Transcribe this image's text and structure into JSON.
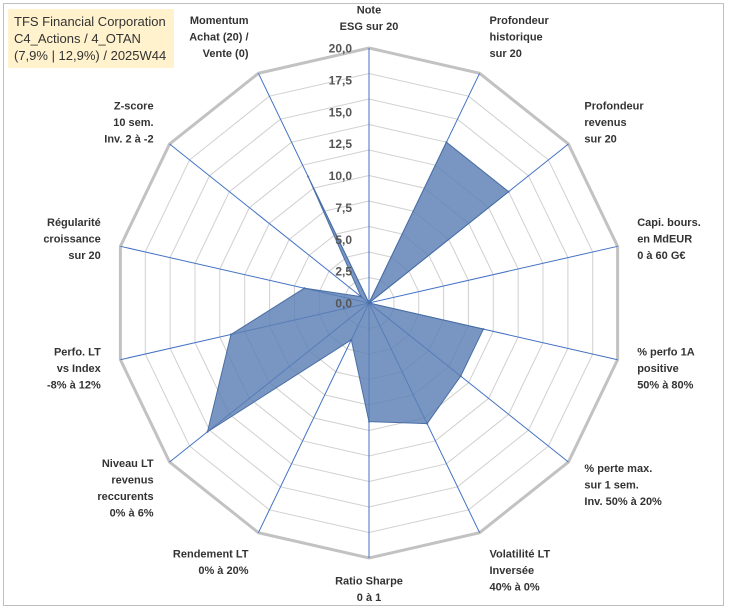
{
  "chart_data": {
    "type": "radar",
    "title_lines": [
      "TFS Financial Corporation",
      "C4_Actions / 4_OTAN",
      "(7,9% | 12,9%) / 2025W44"
    ],
    "range": [
      0,
      20
    ],
    "ticks": [
      "0,0",
      "2,5",
      "5,0",
      "7,5",
      "10,0",
      "12,5",
      "15,0",
      "17,5",
      "20,0"
    ],
    "axes": [
      {
        "label": [
          "Note",
          "ESG sur 20"
        ],
        "value": 0.0
      },
      {
        "label": [
          "Profondeur",
          "historique",
          "sur 20"
        ],
        "value": 14.0
      },
      {
        "label": [
          "Profondeur",
          "revenus",
          "sur 20"
        ],
        "value": 14.0
      },
      {
        "label": [
          "Capi. bours.",
          "en MdEUR",
          "0 à 60 G€"
        ],
        "value": 0.0
      },
      {
        "label": [
          "% perfo 1A",
          "positive",
          "50% à 80%"
        ],
        "value": 9.2
      },
      {
        "label": [
          "% perte max.",
          "sur 1 sem.",
          "Inv. 50% à 20%"
        ],
        "value": 9.2
      },
      {
        "label": [
          "Volatilité LT",
          "Inversée",
          "40% à 0%"
        ],
        "value": 10.5
      },
      {
        "label": [
          "Ratio Sharpe",
          "0 à 1"
        ],
        "value": 9.3
      },
      {
        "label": [
          "Rendement LT",
          "0% à 20%"
        ],
        "value": 3.2
      },
      {
        "label": [
          "Niveau LT",
          "revenus",
          "reccurents",
          "0% à 6%"
        ],
        "value": 16.2
      },
      {
        "label": [
          "Perfo. LT",
          "vs Index",
          "-8% à 12%"
        ],
        "value": 11.1
      },
      {
        "label": [
          "Régularité",
          "croissance",
          "sur 20"
        ],
        "value": 5.2
      },
      {
        "label": [
          "Z-score",
          "10 sem.",
          "Inv. 2 à -2"
        ],
        "value": 0.8
      },
      {
        "label": [
          "Momentum",
          "Achat (20) /",
          "Vente (0)"
        ],
        "value": 11.0
      }
    ],
    "colors": {
      "fill": "#5b7fb5",
      "fill_opacity": 0.82,
      "stroke": "#4a6fa5",
      "spoke": "#4472c4",
      "grid": "#d0d0d0",
      "outer_grid": "#c2c2c2"
    }
  }
}
